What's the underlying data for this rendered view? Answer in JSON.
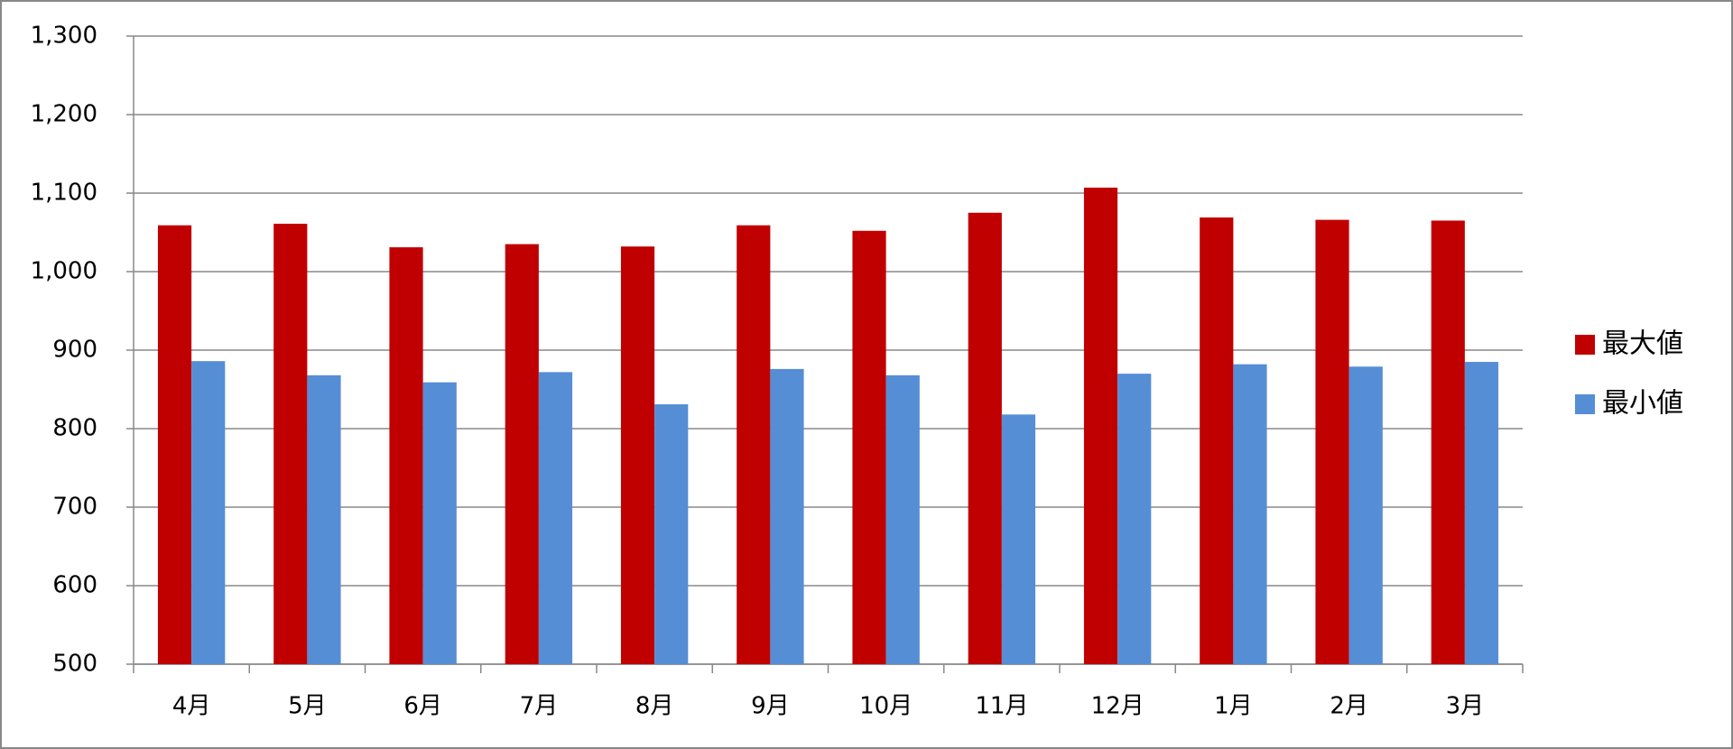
{
  "chart_data": {
    "type": "bar",
    "categories": [
      "4月",
      "5月",
      "6月",
      "7月",
      "8月",
      "9月",
      "10月",
      "11月",
      "12月",
      "1月",
      "2月",
      "3月"
    ],
    "series": [
      {
        "name": "最大値",
        "color": "#c00000",
        "values": [
          1059,
          1061,
          1031,
          1035,
          1032,
          1059,
          1052,
          1075,
          1107,
          1069,
          1066,
          1065
        ]
      },
      {
        "name": "最小値",
        "color": "#558ed5",
        "values": [
          886,
          868,
          859,
          872,
          831,
          876,
          868,
          818,
          870,
          882,
          879,
          885
        ]
      }
    ],
    "ylim": [
      500,
      1300
    ],
    "yticks": [
      500,
      600,
      700,
      800,
      900,
      {
        "value": 1000,
        "label": "1,000"
      },
      {
        "value": 1100,
        "label": "1,100"
      },
      {
        "value": 1200,
        "label": "1,200"
      },
      {
        "value": 1300,
        "label": "1,300"
      }
    ],
    "grid": true,
    "legend": "right"
  }
}
